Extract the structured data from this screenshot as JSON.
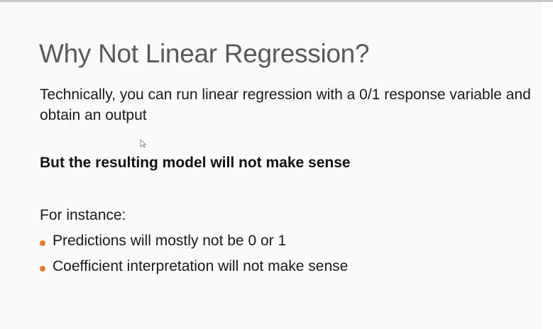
{
  "slide": {
    "title": "Why Not Linear Regression?",
    "paragraph": "Technically, you can run linear regression with a 0/1 response variable and obtain an output",
    "emphasis": "But the resulting model will not make sense",
    "intro": "For instance:",
    "bullets": [
      {
        "text": "Predictions will mostly not be 0 or 1"
      },
      {
        "text": "Coefficient interpretation will not make sense"
      }
    ]
  },
  "colors": {
    "title": "#595959",
    "body": "#1a1a1a",
    "bullet_accent": "#e07b2a",
    "slide_background": "#fafafa"
  },
  "icons": {
    "pointer": "mouse-pointer-icon"
  }
}
